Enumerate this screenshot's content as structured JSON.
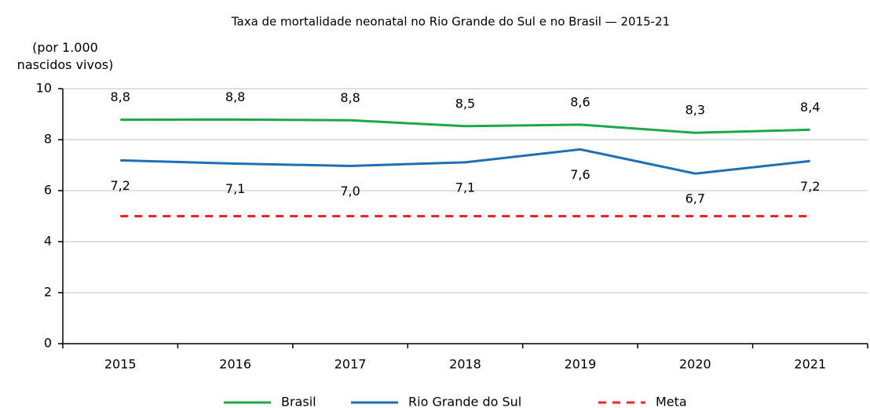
{
  "chart_data": {
    "type": "line",
    "title": "Taxa de mortalidade neonatal no Rio Grande do Sul e no Brasil — 2015-21",
    "y_label": "(por 1.000 nascidos vivos)",
    "categories": [
      "2015",
      "2016",
      "2017",
      "2018",
      "2019",
      "2020",
      "2021"
    ],
    "series": [
      {
        "name": "Brasil",
        "color": "#1fa64b",
        "linestyle": "solid",
        "values": [
          8.78,
          8.79,
          8.76,
          8.53,
          8.59,
          8.27,
          8.39
        ],
        "value_labels": [
          "8,8",
          "8,8",
          "8,8",
          "8,5",
          "8,6",
          "8,3",
          "8,4"
        ]
      },
      {
        "name": "Rio Grande do Sul",
        "color": "#1f6fb5",
        "linestyle": "solid",
        "values": [
          7.19,
          7.06,
          6.97,
          7.11,
          7.62,
          6.67,
          7.16
        ],
        "value_labels": [
          "7,2",
          "7,1",
          "7,0",
          "7,1",
          "7,6",
          "6,7",
          "7,2"
        ]
      },
      {
        "name": "Meta",
        "color": "#e8262a",
        "linestyle": "dashed",
        "values": [
          5,
          5,
          5,
          5,
          5,
          5,
          5
        ]
      }
    ],
    "ylim": [
      0,
      10
    ],
    "yticks": [
      0,
      2,
      4,
      6,
      8,
      10
    ],
    "grid": true,
    "legend": "bottom"
  }
}
